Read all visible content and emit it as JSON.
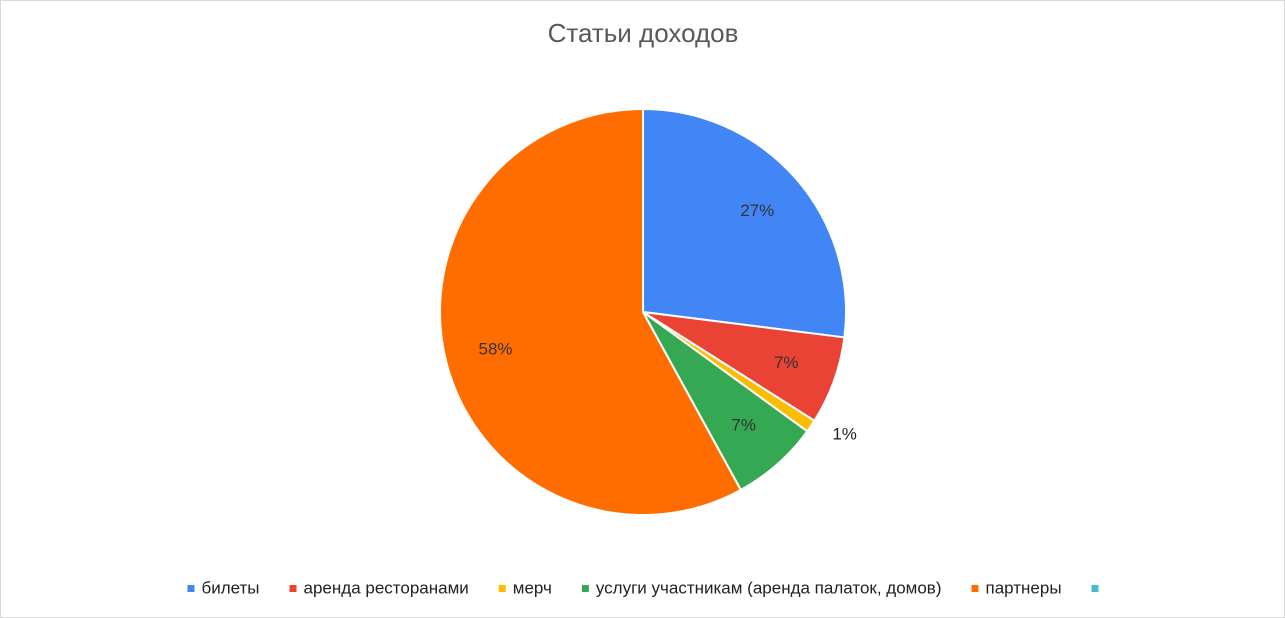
{
  "chart_data": {
    "type": "pie",
    "title": "Статьи доходов",
    "categories": [
      "билеты",
      "аренда ресторанами",
      "мерч",
      "услуги участникам (аренда палаток, домов)",
      "партнеры",
      null
    ],
    "values": [
      27,
      7,
      1,
      7,
      58,
      0
    ],
    "value_labels": [
      "27%",
      "7%",
      "1%",
      "7%",
      "58%",
      null
    ],
    "colors": [
      "#4285f4",
      "#ea4335",
      "#fbbc04",
      "#34a853",
      "#ff6d01",
      "#46bdc6"
    ],
    "legend": "bottom"
  }
}
